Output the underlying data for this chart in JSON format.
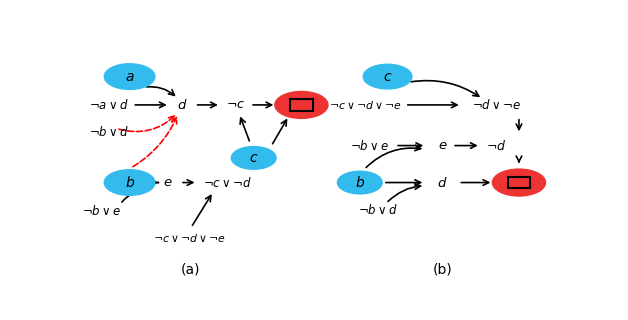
{
  "fig_width": 6.28,
  "fig_height": 3.2,
  "dpi": 100,
  "cyan_color": "#33BBEE",
  "red_color": "#EE3333",
  "caption_a": "(a)",
  "caption_b": "(b)"
}
